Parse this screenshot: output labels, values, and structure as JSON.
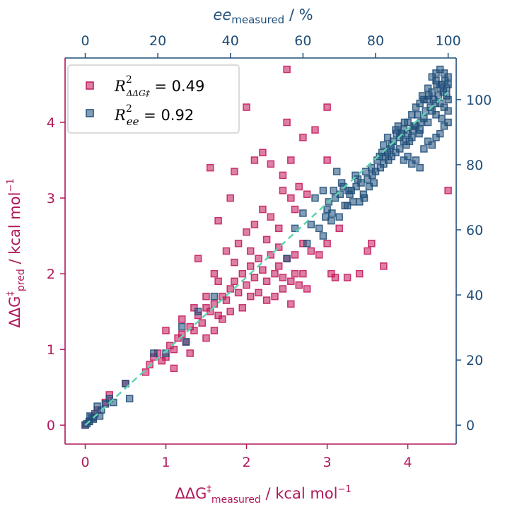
{
  "chart_data": {
    "type": "scatter",
    "title": "",
    "colors": {
      "ddg": "#c2185b",
      "ee": "#1f4e79",
      "diagonal": "#5fd4b0",
      "frame_left": "#b0185a",
      "frame_right": "#1f4e79"
    },
    "axes": {
      "bottom": {
        "label_main": "ΔΔG",
        "label_sup": "‡",
        "label_sub": "measured",
        "label_tail": " / kcal mol",
        "label_exp": "−1",
        "range": [
          -0.25,
          4.6
        ],
        "ticks": [
          "0",
          "1",
          "2",
          "3",
          "4"
        ]
      },
      "left": {
        "label_main": "ΔΔG",
        "label_sup": "‡",
        "label_sub": "pred",
        "label_tail": " / kcal mol",
        "label_exp": "−1",
        "range": [
          -0.25,
          4.85
        ],
        "ticks": [
          "0",
          "1",
          "2",
          "3",
          "4"
        ]
      },
      "top": {
        "label_main": "ee",
        "label_sub": "measured",
        "label_tail": " / %",
        "range": [
          -0.25,
          4.6
        ],
        "ticks": [
          "0",
          "20",
          "40",
          "60",
          "80",
          "100"
        ],
        "tick_positions": [
          0,
          0.9,
          1.8,
          2.7,
          3.6,
          4.5
        ]
      },
      "right": {
        "range": [
          -0.25,
          4.85
        ],
        "ticks": [
          "0",
          "20",
          "40",
          "60",
          "80",
          "100"
        ],
        "tick_positions": [
          0,
          0.86,
          1.72,
          2.58,
          3.44,
          4.3
        ]
      }
    },
    "legend": {
      "placement": "top-left",
      "entries": [
        {
          "label_main": "R",
          "label_sup": "2",
          "label_sub": "ΔΔG‡",
          "label_value": " = 0.49",
          "series": "ddg"
        },
        {
          "label_main": "R",
          "label_sup": "2",
          "label_sub": "ee",
          "label_value": " = 0.92",
          "series": "ee"
        }
      ]
    },
    "diagonal": {
      "x": [
        0,
        4.5
      ],
      "y": [
        0,
        4.4
      ]
    },
    "series": [
      {
        "id": "ddg",
        "points": [
          [
            0,
            0
          ],
          [
            0.05,
            0.05
          ],
          [
            0.1,
            0.1
          ],
          [
            0.15,
            0.2
          ],
          [
            0.25,
            0.3
          ],
          [
            0.3,
            0.4
          ],
          [
            0.5,
            0.55
          ],
          [
            0.75,
            0.7
          ],
          [
            0.8,
            0.8
          ],
          [
            0.85,
            0.9
          ],
          [
            0.9,
            0.95
          ],
          [
            1.0,
            0.9
          ],
          [
            1.05,
            1.05
          ],
          [
            1.1,
            1.0
          ],
          [
            1.15,
            1.15
          ],
          [
            1.2,
            1.2
          ],
          [
            1.25,
            1.1
          ],
          [
            1.3,
            1.3
          ],
          [
            1.35,
            1.25
          ],
          [
            1.4,
            1.45
          ],
          [
            1.45,
            1.35
          ],
          [
            1.5,
            1.55
          ],
          [
            1.55,
            1.5
          ],
          [
            1.6,
            1.6
          ],
          [
            1.65,
            1.45
          ],
          [
            1.7,
            1.7
          ],
          [
            1.75,
            1.65
          ],
          [
            1.8,
            1.8
          ],
          [
            1.85,
            1.9
          ],
          [
            1.9,
            1.75
          ],
          [
            1.95,
            2.0
          ],
          [
            2.0,
            1.85
          ],
          [
            2.05,
            2.1
          ],
          [
            2.1,
            1.95
          ],
          [
            2.15,
            2.2
          ],
          [
            2.2,
            2.05
          ],
          [
            2.25,
            1.9
          ],
          [
            2.3,
            2.25
          ],
          [
            2.35,
            2.0
          ],
          [
            2.4,
            2.1
          ],
          [
            2.45,
            1.8
          ],
          [
            2.5,
            2.2
          ],
          [
            2.55,
            1.9
          ],
          [
            2.6,
            2.0
          ],
          [
            2.65,
            1.85
          ],
          [
            2.7,
            2.4
          ],
          [
            2.75,
            1.8
          ],
          [
            1.4,
            2.2
          ],
          [
            1.6,
            2.0
          ],
          [
            1.75,
            2.3
          ],
          [
            1.9,
            2.4
          ],
          [
            2.0,
            2.55
          ],
          [
            2.1,
            2.65
          ],
          [
            2.2,
            2.85
          ],
          [
            2.3,
            2.75
          ],
          [
            2.45,
            3.1
          ],
          [
            2.55,
            3.0
          ],
          [
            2.65,
            3.15
          ],
          [
            2.75,
            3.05
          ],
          [
            1.55,
            3.4
          ],
          [
            1.85,
            3.35
          ],
          [
            2.1,
            3.5
          ],
          [
            2.2,
            3.6
          ],
          [
            2.3,
            3.45
          ],
          [
            2.45,
            3.3
          ],
          [
            2.55,
            3.5
          ],
          [
            2.7,
            3.8
          ],
          [
            2.85,
            3.9
          ],
          [
            3.0,
            3.5
          ],
          [
            1.8,
            3.0
          ],
          [
            1.65,
            2.7
          ],
          [
            2.4,
            2.6
          ],
          [
            2.6,
            2.85
          ],
          [
            3.05,
            2.0
          ],
          [
            3.1,
            1.95
          ],
          [
            3.25,
            1.95
          ],
          [
            3.4,
            2.0
          ],
          [
            3.5,
            2.3
          ],
          [
            3.55,
            2.4
          ],
          [
            3.7,
            2.1
          ],
          [
            3.15,
            2.6
          ],
          [
            3.0,
            2.4
          ],
          [
            2.5,
            4.7
          ],
          [
            2.0,
            4.2
          ],
          [
            3.0,
            4.2
          ],
          [
            2.5,
            4.0
          ],
          [
            4.5,
            3.1
          ],
          [
            1.0,
            1.25
          ],
          [
            1.1,
            0.75
          ],
          [
            1.3,
            0.95
          ],
          [
            1.5,
            1.15
          ],
          [
            1.6,
            1.25
          ],
          [
            1.7,
            1.4
          ],
          [
            1.8,
            1.5
          ],
          [
            1.95,
            1.55
          ],
          [
            2.05,
            1.7
          ],
          [
            2.15,
            1.75
          ],
          [
            2.25,
            1.65
          ],
          [
            2.35,
            1.7
          ],
          [
            2.45,
            1.95
          ],
          [
            2.55,
            1.6
          ],
          [
            2.7,
            2.0
          ],
          [
            0.95,
            0.85
          ],
          [
            1.2,
            1.4
          ],
          [
            1.35,
            1.55
          ],
          [
            1.5,
            1.7
          ],
          [
            1.65,
            1.9
          ],
          [
            1.85,
            2.15
          ],
          [
            2.05,
            2.3
          ],
          [
            2.25,
            2.45
          ],
          [
            2.4,
            2.35
          ],
          [
            2.6,
            2.25
          ],
          [
            2.9,
            2.25
          ],
          [
            2.8,
            2.3
          ]
        ]
      },
      {
        "id": "ee",
        "points": [
          [
            0,
            0
          ],
          [
            0.02,
            0.02
          ],
          [
            0.05,
            0.05
          ],
          [
            0.08,
            0.1
          ],
          [
            0.12,
            0.15
          ],
          [
            0.15,
            0.25
          ],
          [
            0.2,
            0.2
          ],
          [
            0.25,
            0.28
          ],
          [
            0.3,
            0.35
          ],
          [
            0.35,
            0.3
          ],
          [
            0.5,
            0.55
          ],
          [
            0.55,
            0.35
          ],
          [
            0.85,
            0.95
          ],
          [
            1.0,
            0.95
          ],
          [
            1.2,
            1.3
          ],
          [
            1.4,
            1.5
          ],
          [
            1.6,
            1.7
          ],
          [
            2.5,
            2.2
          ],
          [
            2.75,
            2.4
          ],
          [
            2.9,
            2.6
          ],
          [
            3.0,
            2.85
          ],
          [
            3.1,
            3.0
          ],
          [
            3.2,
            3.15
          ],
          [
            3.3,
            3.1
          ],
          [
            3.35,
            3.3
          ],
          [
            3.4,
            2.95
          ],
          [
            3.45,
            3.05
          ],
          [
            3.5,
            3.25
          ],
          [
            3.55,
            3.4
          ],
          [
            3.6,
            3.35
          ],
          [
            3.65,
            3.55
          ],
          [
            3.7,
            3.45
          ],
          [
            3.75,
            3.6
          ],
          [
            3.8,
            3.7
          ],
          [
            3.85,
            3.6
          ],
          [
            3.9,
            3.8
          ],
          [
            3.95,
            3.75
          ],
          [
            4.0,
            3.85
          ],
          [
            4.05,
            3.8
          ],
          [
            4.1,
            3.95
          ],
          [
            4.15,
            3.9
          ],
          [
            4.2,
            4.05
          ],
          [
            4.25,
            4.0
          ],
          [
            4.3,
            4.15
          ],
          [
            4.35,
            4.1
          ],
          [
            4.4,
            4.25
          ],
          [
            4.45,
            4.2
          ],
          [
            4.5,
            4.3
          ],
          [
            4.48,
            4.45
          ],
          [
            4.42,
            4.5
          ],
          [
            4.35,
            4.55
          ],
          [
            4.3,
            4.4
          ],
          [
            4.25,
            4.45
          ],
          [
            4.2,
            4.3
          ],
          [
            4.15,
            4.25
          ],
          [
            4.1,
            4.2
          ],
          [
            4.05,
            4.1
          ],
          [
            4.0,
            4.0
          ],
          [
            3.95,
            3.9
          ],
          [
            3.9,
            3.65
          ],
          [
            3.85,
            3.9
          ],
          [
            3.8,
            3.55
          ],
          [
            3.75,
            3.8
          ],
          [
            3.7,
            3.7
          ],
          [
            4.5,
            4.0
          ],
          [
            4.45,
            3.95
          ],
          [
            4.4,
            3.85
          ],
          [
            4.35,
            3.8
          ],
          [
            4.3,
            3.7
          ],
          [
            4.25,
            3.75
          ],
          [
            4.2,
            3.65
          ],
          [
            4.1,
            3.5
          ],
          [
            4.0,
            3.55
          ],
          [
            4.15,
            3.4
          ],
          [
            4.05,
            3.45
          ],
          [
            3.95,
            3.5
          ],
          [
            4.5,
            4.6
          ],
          [
            4.45,
            4.65
          ],
          [
            4.4,
            4.7
          ],
          [
            4.35,
            4.65
          ],
          [
            4.3,
            4.6
          ],
          [
            4.5,
            4.15
          ],
          [
            4.48,
            4.35
          ],
          [
            4.42,
            4.05
          ],
          [
            4.38,
            4.35
          ],
          [
            4.32,
            4.3
          ],
          [
            4.28,
            4.2
          ],
          [
            4.22,
            4.15
          ],
          [
            4.18,
            4.35
          ],
          [
            4.12,
            4.1
          ],
          [
            4.08,
            3.95
          ],
          [
            4.02,
            3.75
          ],
          [
            3.98,
            3.7
          ],
          [
            3.92,
            3.85
          ],
          [
            3.88,
            3.95
          ],
          [
            3.82,
            3.75
          ],
          [
            3.78,
            3.65
          ],
          [
            3.72,
            3.55
          ],
          [
            3.68,
            3.6
          ],
          [
            3.62,
            3.5
          ],
          [
            3.58,
            3.2
          ],
          [
            3.52,
            3.15
          ],
          [
            3.48,
            3.35
          ],
          [
            3.42,
            3.2
          ],
          [
            3.38,
            3.25
          ],
          [
            3.32,
            2.95
          ],
          [
            3.28,
            3.05
          ],
          [
            3.22,
            2.9
          ],
          [
            3.18,
            3.2
          ],
          [
            3.12,
            3.35
          ],
          [
            3.08,
            3.1
          ],
          [
            3.02,
            2.95
          ],
          [
            2.95,
            3.1
          ],
          [
            2.85,
            3.0
          ],
          [
            2.7,
            2.8
          ],
          [
            2.6,
            2.6
          ],
          [
            2.8,
            2.65
          ],
          [
            2.95,
            2.5
          ],
          [
            3.05,
            2.7
          ],
          [
            3.15,
            2.75
          ],
          [
            3.25,
            2.9
          ],
          [
            4.5,
            4.5
          ],
          [
            4.46,
            4.55
          ],
          [
            4.44,
            4.4
          ],
          [
            4.4,
            4.45
          ],
          [
            4.36,
            4.5
          ],
          [
            4.34,
            4.25
          ],
          [
            4.26,
            4.35
          ],
          [
            4.24,
            4.3
          ],
          [
            4.16,
            4.0
          ],
          [
            4.14,
            3.85
          ],
          [
            4.06,
            3.9
          ],
          [
            3.96,
            4.0
          ],
          [
            3.86,
            3.85
          ],
          [
            3.76,
            3.5
          ],
          [
            3.66,
            3.4
          ],
          [
            3.56,
            3.3
          ],
          [
            3.46,
            3.0
          ],
          [
            3.36,
            3.15
          ],
          [
            3.26,
            3.1
          ],
          [
            3.16,
            3.05
          ],
          [
            3.06,
            2.8
          ],
          [
            2.98,
            2.75
          ],
          [
            1.25,
            1.1
          ],
          [
            0.1,
            0.08
          ],
          [
            0.18,
            0.12
          ],
          [
            0.06,
            0.12
          ]
        ]
      }
    ]
  }
}
